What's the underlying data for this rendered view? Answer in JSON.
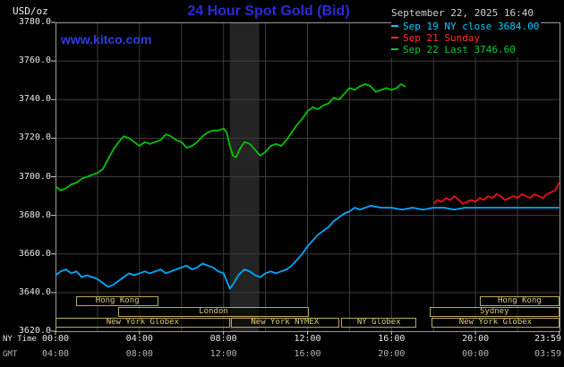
{
  "header": {
    "datetime": "September 22, 2025 16:40",
    "watermark": "www.kitco.com"
  },
  "legend": {
    "entries": [
      {
        "label": "Sep 19 NY close 3684.00",
        "color": "#00ccff"
      },
      {
        "label": "Sep 21 Sunday",
        "color": "#ff3030"
      },
      {
        "label": "Sep 22 Last 3746.60",
        "color": "#00cc33"
      }
    ]
  },
  "axes": {
    "unit_label": "USD/oz",
    "ny_label": "NY Time",
    "gmt_label": "GMT",
    "y_ticks": [
      "3780.0",
      "3760.0",
      "3740.0",
      "3720.0",
      "3700.0",
      "3680.0",
      "3660.0",
      "3640.0",
      "3620.0"
    ],
    "x_ticks": [
      {
        "hour": 0,
        "ny": "00:00",
        "gmt": "04:00"
      },
      {
        "hour": 4,
        "ny": "04:00",
        "gmt": "08:00"
      },
      {
        "hour": 8,
        "ny": "08:00",
        "gmt": "12:00"
      },
      {
        "hour": 12,
        "ny": "12:00",
        "gmt": "16:00"
      },
      {
        "hour": 16,
        "ny": "16:00",
        "gmt": "20:00"
      },
      {
        "hour": 20,
        "ny": "20:00",
        "gmt": "00:00"
      },
      {
        "hour": 23.983,
        "ny": "23:59",
        "gmt": "03:59"
      }
    ]
  },
  "sessions": {
    "border_color": "#b9a95c",
    "text_color": "#dcca7c",
    "rows": [
      {
        "boxes": [
          {
            "label": "Hong Kong",
            "from": 1.0,
            "to": 4.9
          },
          {
            "label": "Hong Kong",
            "from": 20.2,
            "to": 24
          }
        ]
      },
      {
        "boxes": [
          {
            "label": "London",
            "from": 3.0,
            "to": 12.05
          },
          {
            "label": "Sydney",
            "from": 17.8,
            "to": 24
          }
        ]
      },
      {
        "boxes": [
          {
            "label": "New York Globex",
            "from": 0,
            "to": 8.3
          },
          {
            "label": "New York NYMEX",
            "from": 8.35,
            "to": 13.5
          },
          {
            "label": "NY Globex",
            "from": 13.6,
            "to": 17.2
          },
          {
            "label": "New York Globex",
            "from": 17.9,
            "to": 24
          }
        ]
      }
    ]
  },
  "chart_data": {
    "type": "line",
    "title": "24 Hour Spot Gold (Bid)",
    "ylabel": "USD/oz",
    "xlabel": "NY Time (hours)",
    "x_min": 0,
    "x_max": 24,
    "y_min": 3620,
    "y_max": 3780,
    "x_gridstep": 2,
    "y_gridstep": 20,
    "grid": true,
    "legend_position": "top-right",
    "bands": [
      {
        "from": 8.3,
        "to": 9.7,
        "color": "#242424"
      }
    ],
    "series": [
      {
        "name": "Sep 19 NY close",
        "close_value": 3684.0,
        "color": "#00aaff",
        "points": [
          [
            0,
            3649
          ],
          [
            0.25,
            3651
          ],
          [
            0.5,
            3652
          ],
          [
            0.75,
            3650
          ],
          [
            1,
            3651
          ],
          [
            1.25,
            3648
          ],
          [
            1.5,
            3649
          ],
          [
            1.75,
            3648
          ],
          [
            2,
            3647
          ],
          [
            2.25,
            3645
          ],
          [
            2.5,
            3643
          ],
          [
            2.75,
            3644
          ],
          [
            3,
            3646
          ],
          [
            3.25,
            3648
          ],
          [
            3.5,
            3650
          ],
          [
            3.75,
            3649
          ],
          [
            4,
            3650
          ],
          [
            4.25,
            3651
          ],
          [
            4.5,
            3650
          ],
          [
            4.75,
            3651
          ],
          [
            5,
            3652
          ],
          [
            5.25,
            3650
          ],
          [
            5.5,
            3651
          ],
          [
            5.75,
            3652
          ],
          [
            6,
            3653
          ],
          [
            6.25,
            3654
          ],
          [
            6.5,
            3652
          ],
          [
            6.75,
            3653
          ],
          [
            7,
            3655
          ],
          [
            7.25,
            3654
          ],
          [
            7.5,
            3653
          ],
          [
            7.75,
            3651
          ],
          [
            8,
            3650
          ],
          [
            8.15,
            3646
          ],
          [
            8.3,
            3642
          ],
          [
            8.5,
            3645
          ],
          [
            8.7,
            3649
          ],
          [
            9,
            3652
          ],
          [
            9.25,
            3651
          ],
          [
            9.5,
            3649
          ],
          [
            9.75,
            3648
          ],
          [
            10,
            3650
          ],
          [
            10.25,
            3651
          ],
          [
            10.5,
            3650
          ],
          [
            10.75,
            3651
          ],
          [
            11,
            3652
          ],
          [
            11.25,
            3654
          ],
          [
            11.5,
            3657
          ],
          [
            11.75,
            3660
          ],
          [
            12,
            3664
          ],
          [
            12.25,
            3667
          ],
          [
            12.5,
            3670
          ],
          [
            12.75,
            3672
          ],
          [
            13,
            3674
          ],
          [
            13.25,
            3677
          ],
          [
            13.5,
            3679
          ],
          [
            13.75,
            3681
          ],
          [
            14,
            3682
          ],
          [
            14.25,
            3684
          ],
          [
            14.5,
            3683
          ],
          [
            14.75,
            3684
          ],
          [
            15,
            3685
          ],
          [
            15.5,
            3684
          ],
          [
            16,
            3684
          ],
          [
            16.5,
            3683
          ],
          [
            17,
            3684
          ],
          [
            17.5,
            3683
          ],
          [
            18,
            3684
          ],
          [
            18.5,
            3684
          ],
          [
            19,
            3683
          ],
          [
            19.5,
            3684
          ],
          [
            20,
            3684
          ],
          [
            20.5,
            3684
          ],
          [
            21,
            3684
          ],
          [
            21.5,
            3684
          ],
          [
            22,
            3684
          ],
          [
            22.5,
            3684
          ],
          [
            23,
            3684
          ],
          [
            23.5,
            3684
          ],
          [
            23.98,
            3684
          ]
        ]
      },
      {
        "name": "Sep 21 Sunday",
        "color": "#ee1111",
        "points": [
          [
            18,
            3686
          ],
          [
            18.2,
            3688
          ],
          [
            18.4,
            3687
          ],
          [
            18.6,
            3689
          ],
          [
            18.8,
            3688
          ],
          [
            19,
            3690
          ],
          [
            19.2,
            3688
          ],
          [
            19.4,
            3686
          ],
          [
            19.6,
            3687
          ],
          [
            19.8,
            3688
          ],
          [
            20,
            3687
          ],
          [
            20.2,
            3689
          ],
          [
            20.4,
            3688
          ],
          [
            20.6,
            3690
          ],
          [
            20.8,
            3689
          ],
          [
            21,
            3691
          ],
          [
            21.2,
            3690
          ],
          [
            21.4,
            3688
          ],
          [
            21.6,
            3689
          ],
          [
            21.8,
            3690
          ],
          [
            22,
            3689
          ],
          [
            22.2,
            3691
          ],
          [
            22.4,
            3690
          ],
          [
            22.6,
            3689
          ],
          [
            22.8,
            3691
          ],
          [
            23,
            3690
          ],
          [
            23.2,
            3689
          ],
          [
            23.4,
            3691
          ],
          [
            23.6,
            3692
          ],
          [
            23.8,
            3693
          ],
          [
            23.98,
            3697
          ]
        ]
      },
      {
        "name": "Sep 22 Last",
        "last_value": 3746.6,
        "color": "#00c400",
        "points": [
          [
            0,
            3695
          ],
          [
            0.25,
            3693
          ],
          [
            0.5,
            3694
          ],
          [
            0.75,
            3696
          ],
          [
            1,
            3697
          ],
          [
            1.25,
            3699
          ],
          [
            1.5,
            3700
          ],
          [
            1.75,
            3701
          ],
          [
            2,
            3702
          ],
          [
            2.25,
            3704
          ],
          [
            2.5,
            3709
          ],
          [
            2.75,
            3714
          ],
          [
            3,
            3718
          ],
          [
            3.25,
            3721
          ],
          [
            3.5,
            3720
          ],
          [
            3.75,
            3718
          ],
          [
            4,
            3716
          ],
          [
            4.25,
            3718
          ],
          [
            4.5,
            3717
          ],
          [
            4.75,
            3718
          ],
          [
            5,
            3719
          ],
          [
            5.25,
            3722
          ],
          [
            5.5,
            3721
          ],
          [
            5.75,
            3719
          ],
          [
            6,
            3718
          ],
          [
            6.25,
            3715
          ],
          [
            6.5,
            3716
          ],
          [
            6.75,
            3718
          ],
          [
            7,
            3721
          ],
          [
            7.25,
            3723
          ],
          [
            7.5,
            3724
          ],
          [
            7.75,
            3724
          ],
          [
            8,
            3725
          ],
          [
            8.15,
            3723
          ],
          [
            8.3,
            3716
          ],
          [
            8.45,
            3711
          ],
          [
            8.6,
            3710
          ],
          [
            8.75,
            3714
          ],
          [
            9,
            3718
          ],
          [
            9.25,
            3717
          ],
          [
            9.5,
            3714
          ],
          [
            9.75,
            3711
          ],
          [
            10,
            3713
          ],
          [
            10.25,
            3716
          ],
          [
            10.5,
            3717
          ],
          [
            10.75,
            3716
          ],
          [
            11,
            3719
          ],
          [
            11.25,
            3723
          ],
          [
            11.5,
            3727
          ],
          [
            11.75,
            3730
          ],
          [
            12,
            3734
          ],
          [
            12.25,
            3736
          ],
          [
            12.5,
            3735
          ],
          [
            12.75,
            3737
          ],
          [
            13,
            3738
          ],
          [
            13.25,
            3741
          ],
          [
            13.5,
            3740
          ],
          [
            13.75,
            3743
          ],
          [
            14,
            3746
          ],
          [
            14.25,
            3745
          ],
          [
            14.5,
            3747
          ],
          [
            14.75,
            3748
          ],
          [
            15,
            3747
          ],
          [
            15.25,
            3744
          ],
          [
            15.5,
            3745
          ],
          [
            15.75,
            3746
          ],
          [
            16,
            3745
          ],
          [
            16.25,
            3746
          ],
          [
            16.45,
            3748
          ],
          [
            16.67,
            3746.6
          ]
        ]
      }
    ]
  }
}
